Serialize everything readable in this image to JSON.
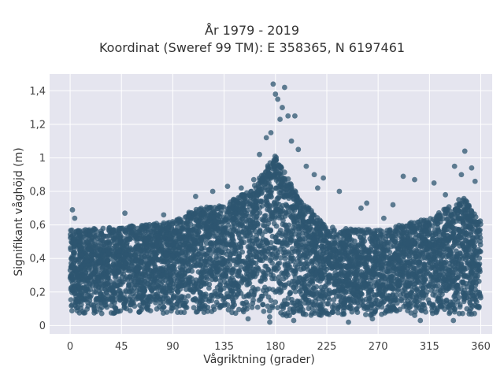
{
  "title": "År 1979 - 2019",
  "subtitle": "Koordinat (Sweref 99 TM): E 358365, N 6197461",
  "colors": {
    "background": "#ffffff",
    "plot_background": "#e5e5ef",
    "grid": "#ffffff",
    "marker": "#2e5570"
  },
  "chart_data": {
    "type": "scatter",
    "title": "År 1979 - 2019",
    "subtitle": "Koordinat (Sweref 99 TM): E 358365, N 6197461",
    "xlabel": "Vågriktning (grader)",
    "ylabel": "Signifikant våghöjd (m)",
    "xlim": [
      -18,
      370
    ],
    "ylim": [
      -0.05,
      1.5
    ],
    "xticks": [
      0,
      45,
      90,
      135,
      180,
      225,
      270,
      315,
      360
    ],
    "xtick_labels": [
      "0",
      "45",
      "90",
      "135",
      "180",
      "225",
      "270",
      "315",
      "360"
    ],
    "yticks": [
      0,
      0.2,
      0.4,
      0.6,
      0.8,
      1.0,
      1.2,
      1.4
    ],
    "ytick_labels": [
      "0",
      "0,2",
      "0,4",
      "0,6",
      "0,8",
      "1",
      "1,2",
      "1,4"
    ],
    "grid": true,
    "dense_cloud_envelope": [
      {
        "x": 0,
        "y_lo": 0.07,
        "y_hi": 0.45
      },
      {
        "x": 45,
        "y_lo": 0.07,
        "y_hi": 0.47
      },
      {
        "x": 90,
        "y_lo": 0.07,
        "y_hi": 0.5
      },
      {
        "x": 110,
        "y_lo": 0.07,
        "y_hi": 0.58
      },
      {
        "x": 135,
        "y_lo": 0.07,
        "y_hi": 0.6
      },
      {
        "x": 160,
        "y_lo": 0.06,
        "y_hi": 0.7
      },
      {
        "x": 180,
        "y_lo": 0.04,
        "y_hi": 0.9
      },
      {
        "x": 200,
        "y_lo": 0.05,
        "y_hi": 0.65
      },
      {
        "x": 225,
        "y_lo": 0.06,
        "y_hi": 0.47
      },
      {
        "x": 270,
        "y_lo": 0.06,
        "y_hi": 0.45
      },
      {
        "x": 315,
        "y_lo": 0.06,
        "y_hi": 0.52
      },
      {
        "x": 345,
        "y_lo": 0.06,
        "y_hi": 0.65
      },
      {
        "x": 360,
        "y_lo": 0.06,
        "y_hi": 0.5
      }
    ],
    "outlier_points": [
      {
        "x": 178,
        "y": 1.44
      },
      {
        "x": 188,
        "y": 1.42
      },
      {
        "x": 180,
        "y": 1.38
      },
      {
        "x": 182,
        "y": 1.35
      },
      {
        "x": 186,
        "y": 1.3
      },
      {
        "x": 191,
        "y": 1.25
      },
      {
        "x": 197,
        "y": 1.25
      },
      {
        "x": 184,
        "y": 1.23
      },
      {
        "x": 176,
        "y": 1.15
      },
      {
        "x": 172,
        "y": 1.12
      },
      {
        "x": 194,
        "y": 1.1
      },
      {
        "x": 200,
        "y": 1.05
      },
      {
        "x": 166,
        "y": 1.02
      },
      {
        "x": 207,
        "y": 0.95
      },
      {
        "x": 214,
        "y": 0.9
      },
      {
        "x": 222,
        "y": 0.88
      },
      {
        "x": 217,
        "y": 0.82
      },
      {
        "x": 236,
        "y": 0.8
      },
      {
        "x": 260,
        "y": 0.73
      },
      {
        "x": 292,
        "y": 0.89
      },
      {
        "x": 302,
        "y": 0.87
      },
      {
        "x": 319,
        "y": 0.85
      },
      {
        "x": 329,
        "y": 0.78
      },
      {
        "x": 337,
        "y": 0.95
      },
      {
        "x": 343,
        "y": 0.9
      },
      {
        "x": 346,
        "y": 1.04
      },
      {
        "x": 352,
        "y": 0.94
      },
      {
        "x": 355,
        "y": 0.86
      },
      {
        "x": 2,
        "y": 0.69
      },
      {
        "x": 4,
        "y": 0.64
      },
      {
        "x": 48,
        "y": 0.67
      },
      {
        "x": 82,
        "y": 0.66
      },
      {
        "x": 97,
        "y": 0.63
      },
      {
        "x": 110,
        "y": 0.77
      },
      {
        "x": 125,
        "y": 0.8
      },
      {
        "x": 138,
        "y": 0.83
      },
      {
        "x": 150,
        "y": 0.82
      },
      {
        "x": 161,
        "y": 0.87
      },
      {
        "x": 255,
        "y": 0.7
      },
      {
        "x": 275,
        "y": 0.64
      },
      {
        "x": 283,
        "y": 0.72
      },
      {
        "x": 244,
        "y": 0.02
      },
      {
        "x": 265,
        "y": 0.04
      },
      {
        "x": 307,
        "y": 0.03
      },
      {
        "x": 336,
        "y": 0.03
      },
      {
        "x": 156,
        "y": 0.04
      },
      {
        "x": 175,
        "y": 0.02
      },
      {
        "x": 196,
        "y": 0.03
      }
    ]
  }
}
